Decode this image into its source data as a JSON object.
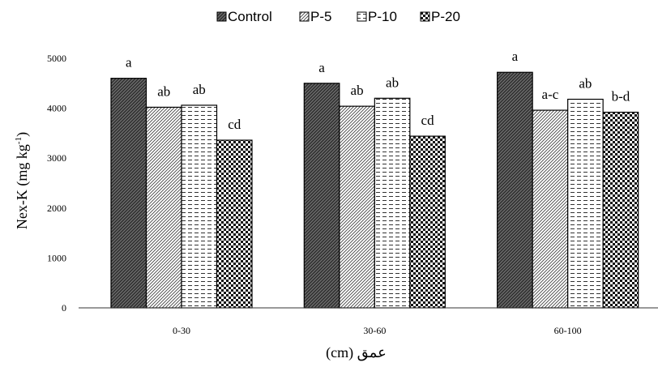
{
  "chart_data": {
    "type": "bar",
    "title": "",
    "xlabel": "(cm) عمق",
    "ylabel_main": "Nex-K (mg kg",
    "ylabel_sup": "-1",
    "ylabel_end": ")",
    "ylim": [
      0,
      5000
    ],
    "yticks": [
      0,
      1000,
      2000,
      3000,
      4000,
      5000
    ],
    "categories": [
      "0-30",
      "30-60",
      "60-100"
    ],
    "legend_position": "top",
    "grid": false,
    "series": [
      {
        "name": "Control",
        "pattern": "dark-diagonal",
        "values": [
          4600,
          4500,
          4720
        ],
        "letters": [
          "a",
          "a",
          "a"
        ]
      },
      {
        "name": "P-5",
        "pattern": "thin-diagonal",
        "values": [
          4020,
          4040,
          3960
        ],
        "letters": [
          "ab",
          "ab",
          "a-c"
        ]
      },
      {
        "name": "P-10",
        "pattern": "dashed-horizontal",
        "values": [
          4060,
          4200,
          4180
        ],
        "letters": [
          "ab",
          "ab",
          "ab"
        ]
      },
      {
        "name": "P-20",
        "pattern": "checker",
        "values": [
          3360,
          3440,
          3920
        ],
        "letters": [
          "cd",
          "cd",
          "b-d"
        ]
      }
    ]
  }
}
